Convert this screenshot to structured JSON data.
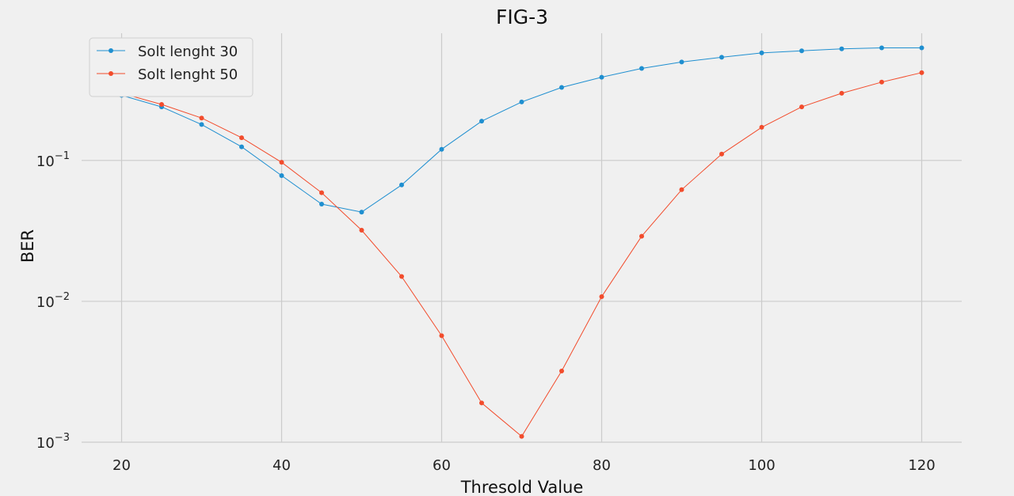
{
  "chart_data": {
    "type": "line",
    "title": "FIG-3",
    "xlabel": "Thresold Value",
    "ylabel": "BER",
    "x": [
      20,
      25,
      30,
      35,
      40,
      45,
      50,
      55,
      60,
      65,
      70,
      75,
      80,
      85,
      90,
      95,
      100,
      105,
      110,
      115,
      120
    ],
    "xlim": [
      15,
      125
    ],
    "ylim": [
      0.001,
      0.8
    ],
    "yscale": "log",
    "xticks": [
      20,
      40,
      60,
      80,
      100,
      120
    ],
    "yticks": [
      {
        "value": 0.1,
        "base": "10",
        "exp": "−1"
      },
      {
        "value": 0.01,
        "base": "10",
        "exp": "−2"
      },
      {
        "value": 0.001,
        "base": "10",
        "exp": "−3"
      }
    ],
    "grid": true,
    "legend_position": "top-left",
    "series": [
      {
        "name": "Solt lenght 30",
        "color": "#1f8fd0",
        "values": [
          0.29,
          0.24,
          0.18,
          0.125,
          0.078,
          0.049,
          0.043,
          0.067,
          0.12,
          0.19,
          0.26,
          0.33,
          0.39,
          0.45,
          0.5,
          0.54,
          0.58,
          0.6,
          0.62,
          0.63,
          0.63
        ]
      },
      {
        "name": "Solt lenght 50",
        "color": "#f24c2c",
        "values": [
          0.3,
          0.25,
          0.2,
          0.145,
          0.097,
          0.059,
          0.032,
          0.015,
          0.0057,
          0.0019,
          0.0011,
          0.0032,
          0.0108,
          0.029,
          0.062,
          0.111,
          0.172,
          0.24,
          0.3,
          0.36,
          0.42
        ]
      }
    ]
  }
}
